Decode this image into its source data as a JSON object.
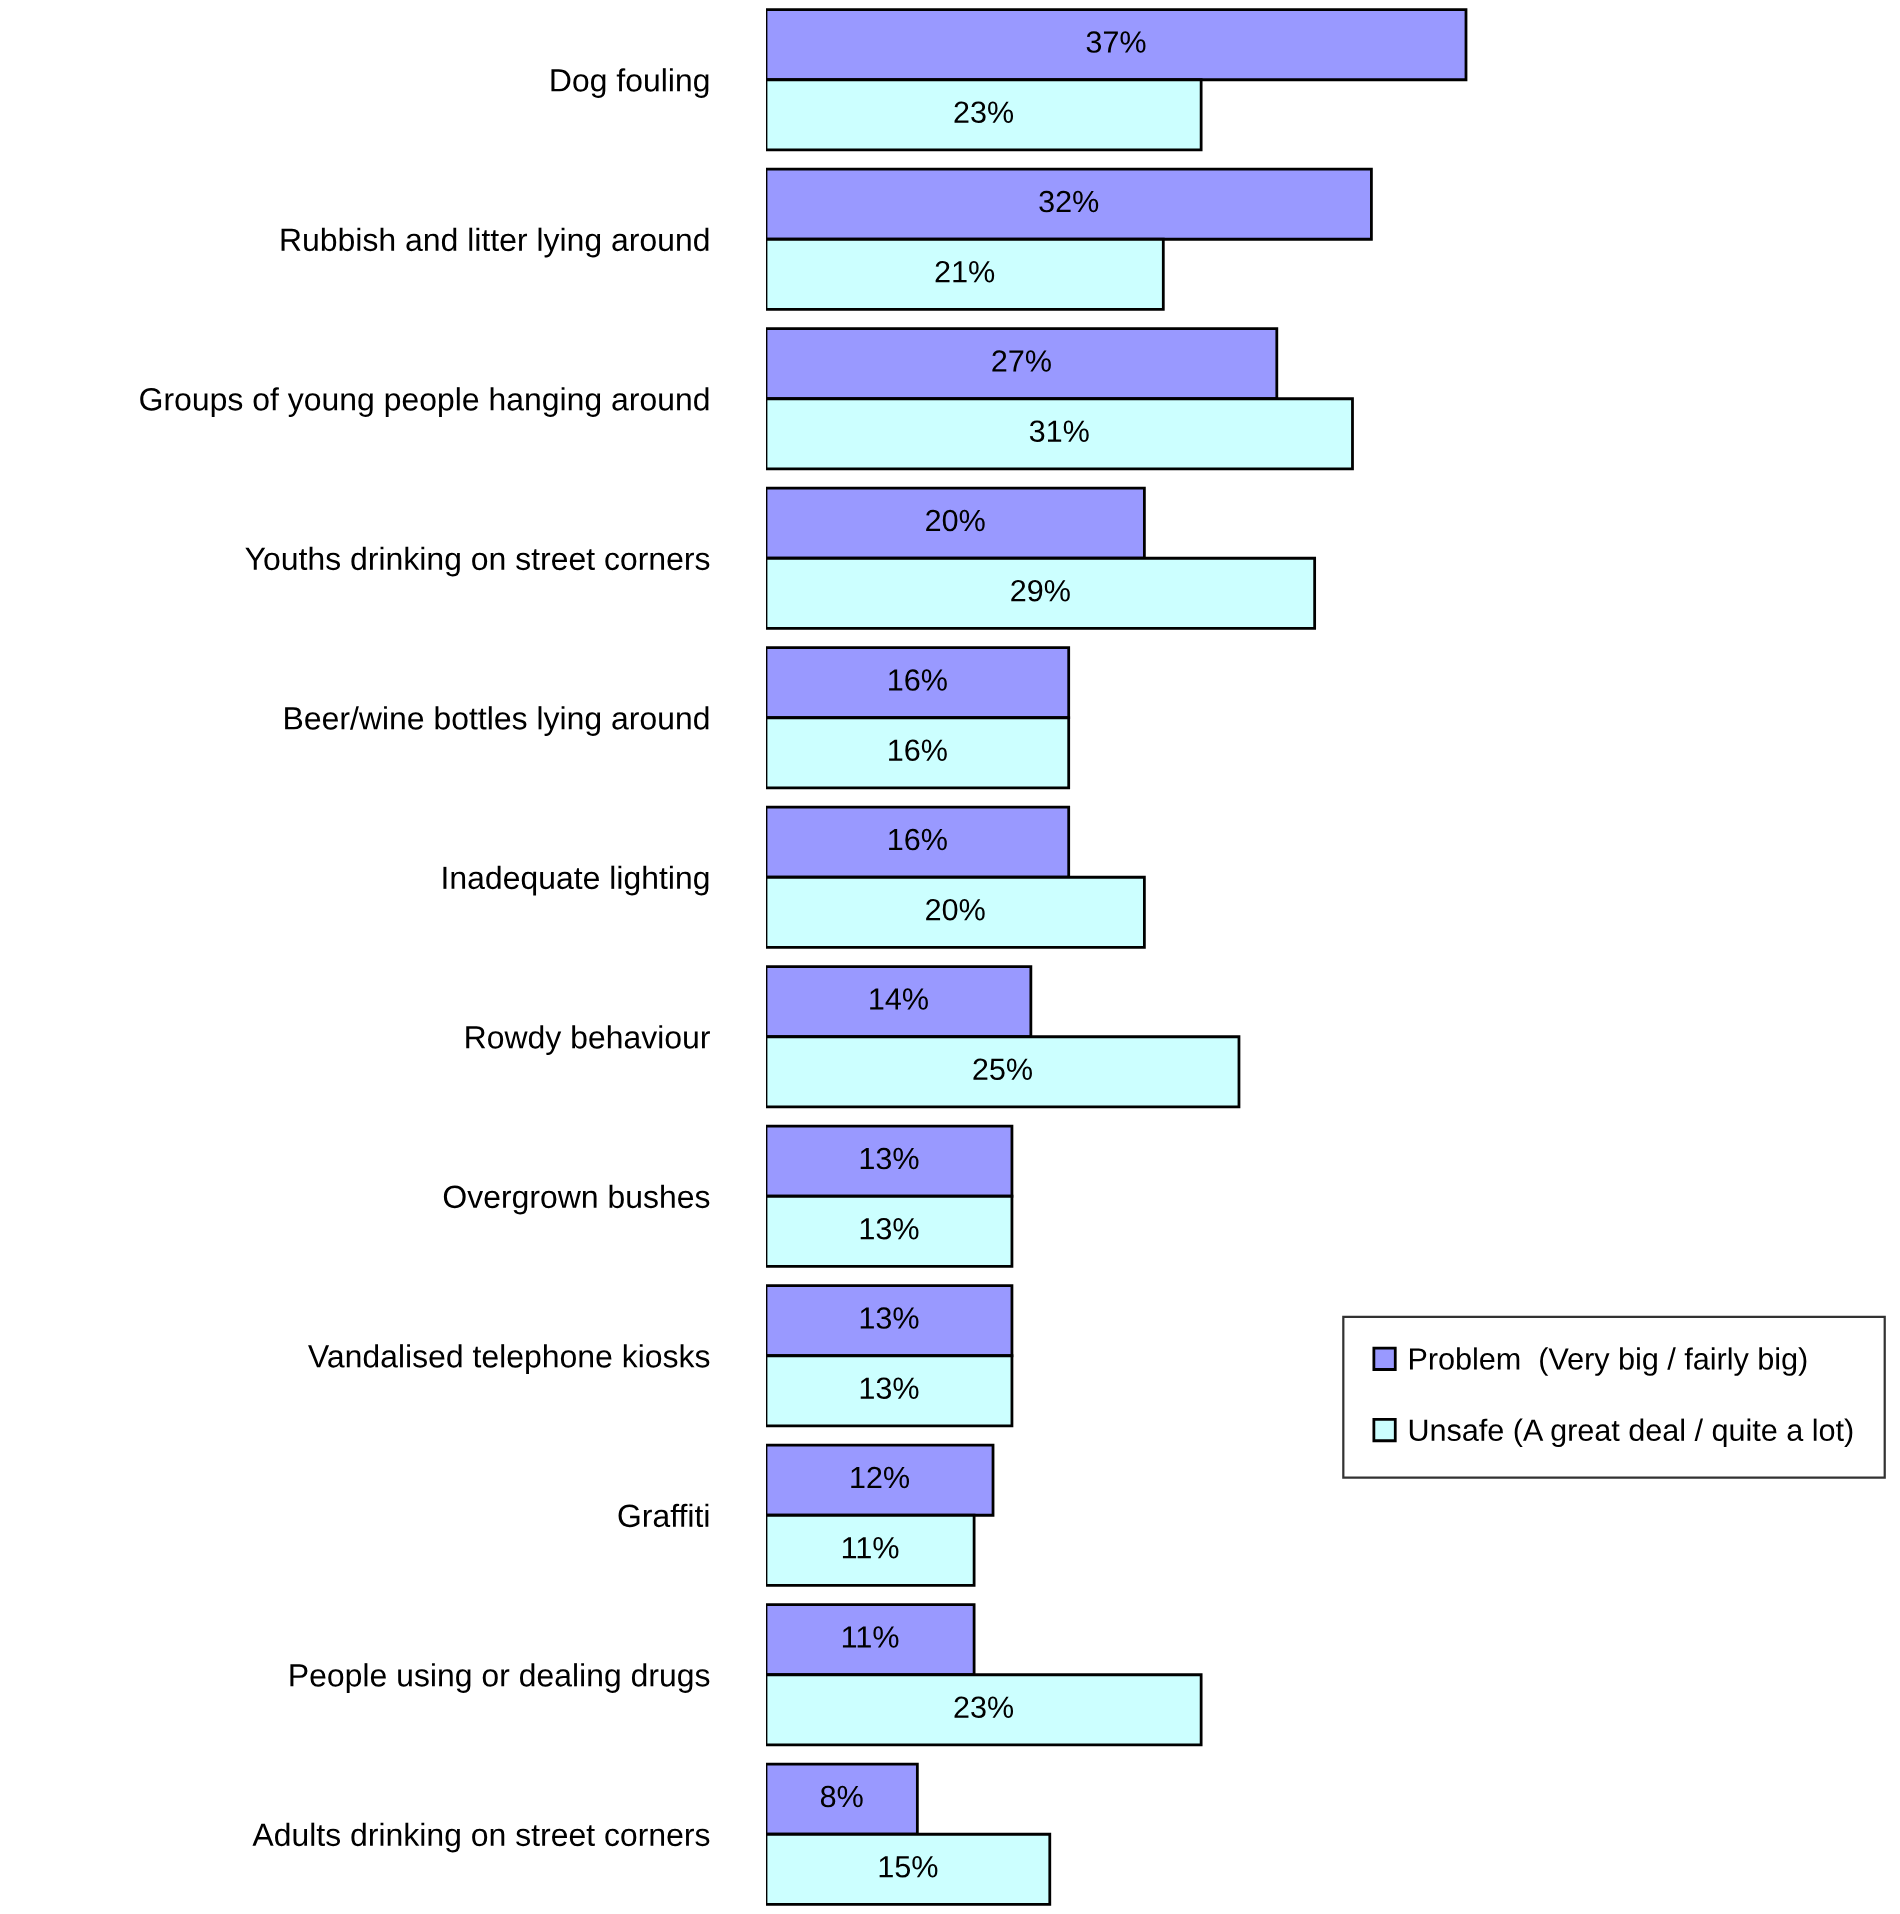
{
  "chart_data": {
    "type": "bar",
    "orientation": "horizontal",
    "legend": "right",
    "grid": false,
    "categories": [
      "Dog fouling",
      "Rubbish and litter lying around",
      "Groups of young people hanging around",
      "Youths drinking on street corners",
      "Beer/wine bottles lying around",
      "Inadequate lighting",
      "Rowdy behaviour",
      "Overgrown bushes",
      "Vandalised telephone kiosks",
      "Graffiti",
      "People using or dealing drugs",
      "Adults drinking on street corners"
    ],
    "series": [
      {
        "name": "Problem  (Very big / fairly big)",
        "color": "#9999ff",
        "values": [
          37,
          32,
          27,
          20,
          16,
          16,
          14,
          13,
          13,
          12,
          11,
          8
        ],
        "value_labels": [
          "37%",
          "32%",
          "27%",
          "20%",
          "16%",
          "16%",
          "14%",
          "13%",
          "13%",
          "12%",
          "11%",
          "8%"
        ]
      },
      {
        "name": "Unsafe (A great deal / quite a lot)",
        "color": "#ccffff",
        "values": [
          23,
          21,
          31,
          29,
          16,
          20,
          25,
          13,
          13,
          11,
          23,
          15
        ],
        "value_labels": [
          "23%",
          "21%",
          "31%",
          "29%",
          "16%",
          "20%",
          "25%",
          "13%",
          "13%",
          "11%",
          "23%",
          "15%"
        ]
      }
    ]
  }
}
